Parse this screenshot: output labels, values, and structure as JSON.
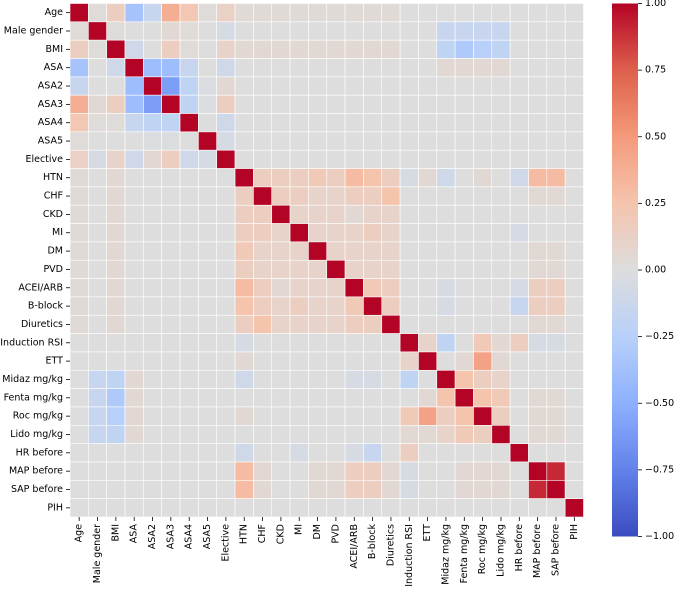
{
  "chart_data": {
    "type": "heatmap",
    "title": "",
    "xlabel": "",
    "ylabel": "",
    "variables": [
      "Age",
      "Male gender",
      "BMI",
      "ASA",
      "ASA2",
      "ASA3",
      "ASA4",
      "ASA5",
      "Elective",
      "HTN",
      "CHF",
      "CKD",
      "MI",
      "DM",
      "PVD",
      "ACEI/ARB",
      "B-block",
      "Diuretics",
      "Induction RSI",
      "ETT",
      "Midaz mg/kg",
      "Fenta mg/kg",
      "Roc mg/kg",
      "Lido mg/kg",
      "HR before",
      "MAP before",
      "SAP before",
      "PIH"
    ],
    "colorbar": {
      "min": -1.0,
      "max": 1.0,
      "colormap": "coolwarm",
      "ticks": [
        1.0,
        0.75,
        0.5,
        0.25,
        0.0,
        -0.25,
        -0.5,
        -0.75,
        -1.0
      ],
      "tick_labels": [
        "1.00",
        "0.75",
        "0.50",
        "0.25",
        "0.00",
        "−0.25",
        "−0.50",
        "−0.75",
        "−1.00"
      ]
    },
    "values": [
      [
        1.0,
        0.02,
        0.15,
        -0.35,
        -0.15,
        0.38,
        0.22,
        0.02,
        0.12,
        0.03,
        0.03,
        0.03,
        0.03,
        0.03,
        0.03,
        0.03,
        0.03,
        0.03,
        0.0,
        0.0,
        0.0,
        0.0,
        0.0,
        0.0,
        0.0,
        0.0,
        0.0,
        0.0
      ],
      [
        0.02,
        1.0,
        0.02,
        0.0,
        0.0,
        0.05,
        0.02,
        0.0,
        -0.05,
        0.0,
        0.0,
        0.0,
        0.0,
        0.0,
        0.0,
        0.0,
        0.0,
        0.0,
        0.0,
        0.0,
        -0.15,
        -0.15,
        -0.15,
        -0.15,
        0.0,
        0.0,
        0.0,
        0.0
      ],
      [
        0.15,
        0.02,
        1.0,
        -0.1,
        0.0,
        0.15,
        0.02,
        0.0,
        0.1,
        0.05,
        0.05,
        0.05,
        0.05,
        0.05,
        0.05,
        0.05,
        0.05,
        0.05,
        0.0,
        0.0,
        -0.2,
        -0.3,
        -0.25,
        -0.2,
        0.0,
        0.0,
        0.0,
        0.0
      ],
      [
        -0.35,
        0.0,
        -0.1,
        1.0,
        -0.4,
        -0.4,
        -0.15,
        0.0,
        -0.1,
        0.0,
        0.0,
        0.0,
        0.0,
        0.0,
        0.0,
        0.0,
        0.0,
        0.0,
        0.0,
        0.0,
        0.05,
        0.05,
        0.05,
        0.05,
        0.0,
        0.0,
        0.0,
        0.0
      ],
      [
        -0.15,
        0.0,
        0.0,
        -0.4,
        1.0,
        -0.6,
        -0.2,
        -0.02,
        0.05,
        0.0,
        0.0,
        0.0,
        0.0,
        0.0,
        0.0,
        0.0,
        0.0,
        0.0,
        0.0,
        0.0,
        0.0,
        0.0,
        0.0,
        0.0,
        0.0,
        0.0,
        0.0,
        0.0
      ],
      [
        0.38,
        0.05,
        0.15,
        -0.4,
        -0.6,
        1.0,
        -0.2,
        -0.02,
        0.15,
        0.0,
        0.0,
        0.0,
        0.0,
        0.0,
        0.0,
        0.0,
        0.0,
        0.0,
        0.0,
        0.0,
        0.0,
        0.0,
        0.0,
        0.0,
        0.0,
        0.0,
        0.0,
        0.0
      ],
      [
        0.22,
        0.02,
        0.02,
        -0.15,
        -0.2,
        -0.2,
        1.0,
        0.0,
        -0.1,
        0.0,
        0.0,
        0.0,
        0.0,
        0.0,
        0.0,
        0.0,
        0.0,
        0.0,
        0.0,
        0.0,
        0.0,
        0.0,
        0.0,
        0.0,
        0.0,
        0.0,
        0.0,
        0.0
      ],
      [
        0.02,
        0.0,
        0.0,
        0.0,
        -0.02,
        -0.02,
        0.0,
        1.0,
        -0.05,
        0.0,
        0.0,
        0.0,
        0.0,
        0.0,
        0.0,
        0.0,
        0.0,
        0.0,
        0.0,
        0.0,
        0.0,
        0.0,
        0.0,
        0.0,
        0.0,
        0.0,
        0.0,
        0.0
      ],
      [
        0.12,
        -0.05,
        0.1,
        -0.1,
        0.05,
        0.15,
        -0.1,
        -0.05,
        1.0,
        0.0,
        0.0,
        0.0,
        0.0,
        0.0,
        0.0,
        0.0,
        0.0,
        0.0,
        0.0,
        0.0,
        0.0,
        0.0,
        0.0,
        0.0,
        0.0,
        0.0,
        0.0,
        0.0
      ],
      [
        0.03,
        0.0,
        0.05,
        0.0,
        0.0,
        0.0,
        0.0,
        0.0,
        0.0,
        1.0,
        0.15,
        0.15,
        0.15,
        0.2,
        0.15,
        0.3,
        0.25,
        0.15,
        -0.05,
        0.05,
        -0.1,
        0.0,
        0.05,
        0.0,
        -0.1,
        0.3,
        0.3,
        0.0
      ],
      [
        0.03,
        0.0,
        0.05,
        0.0,
        0.0,
        0.0,
        0.0,
        0.0,
        0.0,
        0.15,
        1.0,
        0.15,
        0.15,
        0.1,
        0.1,
        0.15,
        0.15,
        0.25,
        0.0,
        0.0,
        0.0,
        0.0,
        0.0,
        0.0,
        0.0,
        0.05,
        0.05,
        0.0
      ],
      [
        0.03,
        0.0,
        0.05,
        0.0,
        0.0,
        0.0,
        0.0,
        0.0,
        0.0,
        0.15,
        0.15,
        1.0,
        0.1,
        0.1,
        0.1,
        0.05,
        0.1,
        0.1,
        0.0,
        0.0,
        0.0,
        0.0,
        0.0,
        0.0,
        0.0,
        0.0,
        0.0,
        0.0
      ],
      [
        0.03,
        0.0,
        0.05,
        0.0,
        0.0,
        0.0,
        0.0,
        0.0,
        0.0,
        0.15,
        0.15,
        0.1,
        1.0,
        0.1,
        0.1,
        0.1,
        0.15,
        0.1,
        0.0,
        0.0,
        0.0,
        0.0,
        0.0,
        0.0,
        -0.05,
        0.0,
        0.0,
        0.0
      ],
      [
        0.03,
        0.0,
        0.05,
        0.0,
        0.0,
        0.0,
        0.0,
        0.0,
        0.0,
        0.2,
        0.1,
        0.1,
        0.1,
        1.0,
        0.1,
        0.1,
        0.1,
        0.1,
        0.0,
        0.0,
        0.0,
        0.0,
        0.0,
        0.0,
        0.0,
        0.05,
        0.05,
        0.0
      ],
      [
        0.03,
        0.0,
        0.05,
        0.0,
        0.0,
        0.0,
        0.0,
        0.0,
        0.0,
        0.15,
        0.1,
        0.1,
        0.1,
        0.1,
        1.0,
        0.1,
        0.1,
        0.1,
        0.0,
        0.0,
        0.0,
        0.0,
        0.0,
        0.0,
        0.0,
        0.05,
        0.05,
        0.0
      ],
      [
        0.03,
        0.0,
        0.05,
        0.0,
        0.0,
        0.0,
        0.0,
        0.0,
        0.0,
        0.3,
        0.15,
        0.05,
        0.1,
        0.1,
        0.1,
        1.0,
        0.2,
        0.15,
        0.0,
        0.0,
        -0.05,
        0.0,
        0.0,
        0.0,
        -0.05,
        0.15,
        0.15,
        0.0
      ],
      [
        0.03,
        0.0,
        0.05,
        0.0,
        0.0,
        0.0,
        0.0,
        0.0,
        0.0,
        0.25,
        0.15,
        0.1,
        0.15,
        0.1,
        0.1,
        0.2,
        1.0,
        0.15,
        0.0,
        0.0,
        -0.05,
        0.0,
        0.0,
        0.0,
        -0.15,
        0.15,
        0.15,
        0.0
      ],
      [
        0.03,
        0.0,
        0.05,
        0.0,
        0.0,
        0.0,
        0.0,
        0.0,
        0.0,
        0.15,
        0.25,
        0.1,
        0.1,
        0.1,
        0.1,
        0.15,
        0.15,
        1.0,
        0.0,
        0.0,
        0.0,
        0.0,
        0.0,
        0.0,
        0.0,
        0.05,
        0.05,
        0.0
      ],
      [
        0.0,
        0.0,
        0.0,
        0.0,
        0.0,
        0.0,
        0.0,
        0.0,
        0.0,
        -0.05,
        0.0,
        0.0,
        0.0,
        0.0,
        0.0,
        0.0,
        0.0,
        0.0,
        1.0,
        0.1,
        -0.2,
        0.0,
        0.2,
        0.05,
        0.15,
        -0.05,
        -0.05,
        0.0
      ],
      [
        0.0,
        0.0,
        0.0,
        0.0,
        0.0,
        0.0,
        0.0,
        0.0,
        0.0,
        0.05,
        0.0,
        0.0,
        0.0,
        0.0,
        0.0,
        0.0,
        0.0,
        0.0,
        0.1,
        1.0,
        0.0,
        0.05,
        0.45,
        0.05,
        0.0,
        0.0,
        0.0,
        0.0
      ],
      [
        0.0,
        -0.15,
        -0.2,
        0.05,
        0.0,
        0.0,
        0.0,
        0.0,
        0.0,
        -0.1,
        0.0,
        0.0,
        0.0,
        0.0,
        0.0,
        -0.05,
        -0.05,
        0.0,
        -0.2,
        0.0,
        1.0,
        0.25,
        0.15,
        0.1,
        0.0,
        0.0,
        0.0,
        0.0
      ],
      [
        0.0,
        -0.15,
        -0.3,
        0.05,
        0.0,
        0.0,
        0.0,
        0.0,
        0.0,
        0.0,
        0.0,
        0.0,
        0.0,
        0.0,
        0.0,
        0.0,
        0.0,
        0.0,
        0.0,
        0.05,
        0.25,
        1.0,
        0.25,
        0.2,
        0.0,
        0.05,
        0.05,
        0.0
      ],
      [
        0.0,
        -0.15,
        -0.25,
        0.05,
        0.0,
        0.0,
        0.0,
        0.0,
        0.0,
        0.05,
        0.0,
        0.0,
        0.0,
        0.0,
        0.0,
        0.0,
        0.0,
        0.0,
        0.2,
        0.45,
        0.15,
        0.25,
        1.0,
        0.15,
        0.0,
        0.05,
        0.05,
        0.0
      ],
      [
        0.0,
        -0.15,
        -0.2,
        0.05,
        0.0,
        0.0,
        0.0,
        0.0,
        0.0,
        0.0,
        0.0,
        0.0,
        0.0,
        0.0,
        0.0,
        0.0,
        0.0,
        0.0,
        0.05,
        0.05,
        0.1,
        0.2,
        0.15,
        1.0,
        0.0,
        0.05,
        0.05,
        0.0
      ],
      [
        0.0,
        0.0,
        0.0,
        0.0,
        0.0,
        0.0,
        0.0,
        0.0,
        0.0,
        -0.1,
        0.0,
        0.0,
        -0.05,
        0.0,
        0.0,
        -0.05,
        -0.15,
        0.0,
        0.15,
        0.0,
        0.0,
        0.0,
        0.0,
        0.0,
        1.0,
        0.0,
        0.0,
        0.0
      ],
      [
        0.0,
        0.0,
        0.0,
        0.0,
        0.0,
        0.0,
        0.0,
        0.0,
        0.0,
        0.3,
        0.05,
        0.0,
        0.0,
        0.05,
        0.05,
        0.15,
        0.15,
        0.05,
        -0.05,
        0.0,
        0.0,
        0.05,
        0.05,
        0.05,
        0.0,
        1.0,
        0.9,
        0.0
      ],
      [
        0.0,
        0.0,
        0.0,
        0.0,
        0.0,
        0.0,
        0.0,
        0.0,
        0.0,
        0.3,
        0.05,
        0.0,
        0.0,
        0.05,
        0.05,
        0.15,
        0.15,
        0.05,
        -0.05,
        0.0,
        0.0,
        0.05,
        0.05,
        0.05,
        0.0,
        0.9,
        1.0,
        0.0
      ],
      [
        0.0,
        0.0,
        0.0,
        0.0,
        0.0,
        0.0,
        0.0,
        0.0,
        0.0,
        0.0,
        0.0,
        0.0,
        0.0,
        0.0,
        0.0,
        0.0,
        0.0,
        0.0,
        0.0,
        0.0,
        0.0,
        0.0,
        0.0,
        0.0,
        0.0,
        0.0,
        0.0,
        1.0
      ]
    ]
  }
}
